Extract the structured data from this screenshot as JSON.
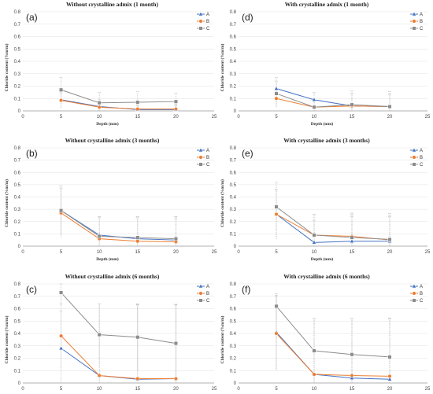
{
  "colors": {
    "A": "#4472C4",
    "B": "#ED7D31",
    "C": "#8C8C8C"
  },
  "chart_data": [
    {
      "panel": "(a)",
      "type": "line",
      "title": "Without crystalline admix (1 month)",
      "xlabel": "Depth (mm)",
      "ylabel": "Chloride content (%m/m)",
      "xlim": [
        0,
        25
      ],
      "ylim": [
        0,
        0.8
      ],
      "xticks": [
        "0",
        "5",
        "10",
        "15",
        "20",
        "25"
      ],
      "yticks": [
        "0",
        "0.1",
        "0.2",
        "0.3",
        "0.4",
        "0.5",
        "0.6",
        "0.7",
        "0.8"
      ],
      "x": [
        5,
        10,
        15,
        20
      ],
      "legend": "top-right",
      "grid": true,
      "series": [
        {
          "name": "A",
          "values": [
            0.09,
            0.035,
            0.01,
            0.01
          ],
          "err": [
            0.065,
            0.055,
            0.03,
            0.035
          ]
        },
        {
          "name": "B",
          "values": [
            0.085,
            0.03,
            0.015,
            0.015
          ],
          "err": [
            0.06,
            0.05,
            0.035,
            0.035
          ]
        },
        {
          "name": "C",
          "values": [
            0.17,
            0.065,
            0.07,
            0.075
          ],
          "err": [
            0.1,
            0.085,
            0.085,
            0.07
          ]
        }
      ]
    },
    {
      "panel": "(d)",
      "type": "line",
      "title": "With crystalline admix (1 month)",
      "xlabel": "Depth (mm)",
      "ylabel": "Chloride content (%m/m)",
      "xlim": [
        0,
        25
      ],
      "ylim": [
        0,
        0.8
      ],
      "xticks": [
        "0",
        "5",
        "10",
        "15",
        "20",
        "25"
      ],
      "yticks": [
        "0",
        "0.1",
        "0.2",
        "0.3",
        "0.4",
        "0.5",
        "0.6",
        "0.7",
        "0.8"
      ],
      "x": [
        5,
        10,
        15,
        20
      ],
      "legend": "top-right",
      "grid": true,
      "series": [
        {
          "name": "A",
          "values": [
            0.18,
            0.09,
            0.04,
            0.035
          ],
          "err": [
            0.09,
            0.06,
            0.1,
            0.1
          ]
        },
        {
          "name": "B",
          "values": [
            0.1,
            0.03,
            0.04,
            0.035
          ],
          "err": [
            0.07,
            0.05,
            0.1,
            0.1
          ]
        },
        {
          "name": "C",
          "values": [
            0.14,
            0.03,
            0.05,
            0.035
          ],
          "err": [
            0.1,
            0.05,
            0.11,
            0.12
          ]
        }
      ]
    },
    {
      "panel": "(b)",
      "type": "line",
      "title": "Without crystalline admix (3 months)",
      "xlabel": "Depth (mm)",
      "ylabel": "Chloride content (%m/m)",
      "xlim": [
        0,
        25
      ],
      "ylim": [
        0,
        0.8
      ],
      "xticks": [
        "0",
        "5",
        "10",
        "15",
        "20",
        "25"
      ],
      "yticks": [
        "0",
        "0.1",
        "0.2",
        "0.3",
        "0.4",
        "0.5",
        "0.6",
        "0.7",
        "0.8"
      ],
      "x": [
        5,
        10,
        15,
        20
      ],
      "legend": "top-right",
      "grid": true,
      "series": [
        {
          "name": "A",
          "values": [
            0.29,
            0.09,
            0.06,
            0.05
          ],
          "err": [
            0.2,
            0.15,
            0.18,
            0.19
          ]
        },
        {
          "name": "B",
          "values": [
            0.27,
            0.06,
            0.04,
            0.035
          ],
          "err": [
            0.2,
            0.17,
            0.19,
            0.19
          ]
        },
        {
          "name": "C",
          "values": [
            0.29,
            0.08,
            0.07,
            0.06
          ],
          "err": [
            0.2,
            0.16,
            0.17,
            0.18
          ]
        }
      ]
    },
    {
      "panel": "(e)",
      "type": "line",
      "title": "With crystalline admix (3 months)",
      "xlabel": "Depth (mm)",
      "ylabel": "Chloride content (%m/m)",
      "xlim": [
        0,
        25
      ],
      "ylim": [
        0,
        0.8
      ],
      "xticks": [
        "0",
        "5",
        "10",
        "15",
        "20",
        "25"
      ],
      "yticks": [
        "0",
        "0.1",
        "0.2",
        "0.3",
        "0.4",
        "0.5",
        "0.6",
        "0.7",
        "0.8"
      ],
      "x": [
        5,
        10,
        15,
        20
      ],
      "legend": "top-right",
      "grid": true,
      "series": [
        {
          "name": "A",
          "values": [
            0.26,
            0.03,
            0.04,
            0.04
          ],
          "err": [
            0.2,
            0.18,
            0.2,
            0.2
          ]
        },
        {
          "name": "B",
          "values": [
            0.26,
            0.09,
            0.08,
            0.05
          ],
          "err": [
            0.2,
            0.17,
            0.18,
            0.2
          ]
        },
        {
          "name": "C",
          "values": [
            0.32,
            0.09,
            0.07,
            0.055
          ],
          "err": [
            0.2,
            0.17,
            0.2,
            0.21
          ]
        }
      ]
    },
    {
      "panel": "(c)",
      "type": "line",
      "title": "Without crystalline admix (6 months)",
      "xlabel": "Depth (mm)",
      "ylabel": "Chloride content (%m/m)",
      "xlim": [
        0,
        25
      ],
      "ylim": [
        0,
        0.8
      ],
      "xticks": [
        "0",
        "5",
        "10",
        "15",
        "20",
        "25"
      ],
      "yticks": [
        "0",
        "0.1",
        "0.2",
        "0.3",
        "0.4",
        "0.5",
        "0.6",
        "0.7",
        "0.8"
      ],
      "x": [
        5,
        10,
        15,
        20
      ],
      "legend": "top-right",
      "grid": true,
      "series": [
        {
          "name": "A",
          "values": [
            0.28,
            0.06,
            0.03,
            0.035
          ],
          "err": [
            0.3,
            0.58,
            0.6,
            0.6
          ]
        },
        {
          "name": "B",
          "values": [
            0.38,
            0.06,
            0.035,
            0.035
          ],
          "err": [
            0.26,
            0.58,
            0.6,
            0.6
          ]
        },
        {
          "name": "C",
          "values": [
            0.73,
            0.39,
            0.37,
            0.32
          ],
          "err": [
            0.1,
            0.25,
            0.27,
            0.31
          ]
        }
      ]
    },
    {
      "panel": "(f)",
      "type": "line",
      "title": "With crystalline admix (6 months)",
      "xlabel": "Depth (mm)",
      "ylabel": "Chloride content (%m/m)",
      "xlim": [
        0,
        25
      ],
      "ylim": [
        0,
        0.8
      ],
      "xticks": [
        "0",
        "5",
        "10",
        "15",
        "20",
        "25"
      ],
      "yticks": [
        "0",
        "0.1",
        "0.2",
        "0.3",
        "0.4",
        "0.5",
        "0.6",
        "0.7",
        "0.8"
      ],
      "x": [
        5,
        10,
        15,
        20
      ],
      "legend": "top-right",
      "grid": true,
      "series": [
        {
          "name": "A",
          "values": [
            0.41,
            0.07,
            0.04,
            0.03
          ],
          "err": [
            0.3,
            0.45,
            0.48,
            0.49
          ]
        },
        {
          "name": "B",
          "values": [
            0.4,
            0.07,
            0.06,
            0.055
          ],
          "err": [
            0.3,
            0.45,
            0.46,
            0.47
          ]
        },
        {
          "name": "C",
          "values": [
            0.62,
            0.26,
            0.23,
            0.21
          ],
          "err": [
            0.1,
            0.26,
            0.29,
            0.31
          ]
        }
      ]
    }
  ]
}
